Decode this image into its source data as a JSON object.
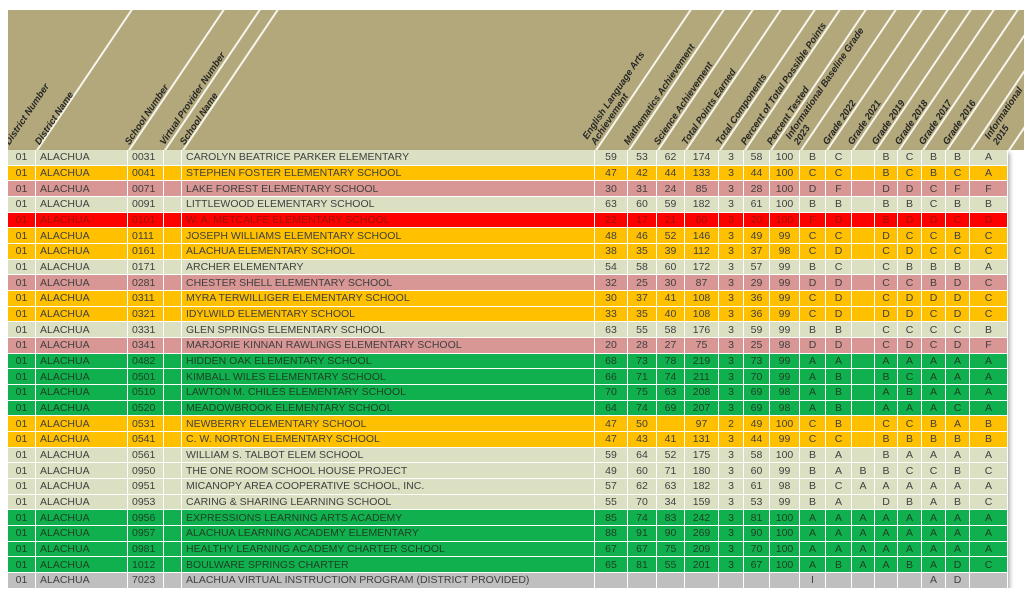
{
  "colors": {
    "header_bg": "#b2a87b",
    "divider": "#f7f5ec",
    "row_pale": "#dbe0c2",
    "row_gold": "#ffc000",
    "row_pink": "#d89694",
    "row_red": "#ff0000",
    "row_green": "#10b04e",
    "row_gray": "#bfbfbf",
    "text_default": "#404040",
    "text_red_row": "#9d1309",
    "text_green_row": "#1d4023"
  },
  "table": {
    "columns": [
      {
        "key": "district-number",
        "label": "District Number"
      },
      {
        "key": "district-name",
        "label": "District Name"
      },
      {
        "key": "school-number",
        "label": "School Number"
      },
      {
        "key": "virtual-provider-number",
        "label": "Virtual Provider Number"
      },
      {
        "key": "school-name",
        "label": "School Name"
      },
      {
        "key": "ela-achievement",
        "label": "English Language Arts\nAchievement"
      },
      {
        "key": "mathematics-achievement",
        "label": "Mathematics Achievement"
      },
      {
        "key": "science-achievement",
        "label": "Science Achievement"
      },
      {
        "key": "total-points-earned",
        "label": "Total Points Earned"
      },
      {
        "key": "total-components",
        "label": "Total Components"
      },
      {
        "key": "percent-of-total-possible-points",
        "label": "Percent of Total Possible Points"
      },
      {
        "key": "percent-tested",
        "label": "Percent Tested"
      },
      {
        "key": "informational-baseline-grade-2023",
        "label": "Informational Baseline Grade\n2023"
      },
      {
        "key": "grade-2022",
        "label": "Grade 2022"
      },
      {
        "key": "grade-2021",
        "label": "Grade 2021"
      },
      {
        "key": "grade-2019",
        "label": "Grade 2019"
      },
      {
        "key": "grade-2018",
        "label": "Grade 2018"
      },
      {
        "key": "grade-2017",
        "label": "Grade 2017"
      },
      {
        "key": "grade-2016",
        "label": "Grade 2016"
      },
      {
        "key": "informational-2015",
        "label": "Informational\n2015"
      }
    ],
    "rows": [
      {
        "color": "pale",
        "cells": [
          "01",
          "ALACHUA",
          "0031",
          "",
          "CAROLYN BEATRICE PARKER ELEMENTARY",
          "59",
          "53",
          "62",
          "174",
          "3",
          "58",
          "100",
          "B",
          "C",
          "",
          "B",
          "C",
          "B",
          "B",
          "A"
        ]
      },
      {
        "color": "gold",
        "cells": [
          "01",
          "ALACHUA",
          "0041",
          "",
          "STEPHEN FOSTER ELEMENTARY SCHOOL",
          "47",
          "42",
          "44",
          "133",
          "3",
          "44",
          "100",
          "C",
          "C",
          "",
          "B",
          "C",
          "B",
          "C",
          "A"
        ]
      },
      {
        "color": "pink",
        "cells": [
          "01",
          "ALACHUA",
          "0071",
          "",
          "LAKE FOREST ELEMENTARY SCHOOL",
          "30",
          "31",
          "24",
          "85",
          "3",
          "28",
          "100",
          "D",
          "F",
          "",
          "D",
          "D",
          "C",
          "F",
          "F"
        ]
      },
      {
        "color": "pale",
        "cells": [
          "01",
          "ALACHUA",
          "0091",
          "",
          "LITTLEWOOD ELEMENTARY SCHOOL",
          "63",
          "60",
          "59",
          "182",
          "3",
          "61",
          "100",
          "B",
          "B",
          "",
          "B",
          "B",
          "C",
          "B",
          "B"
        ]
      },
      {
        "color": "red",
        "cells": [
          "01",
          "ALACHUA",
          "0101",
          "",
          "W. A. METCALFE ELEMENTARY SCHOOL",
          "22",
          "17",
          "21",
          "60",
          "3",
          "20",
          "100",
          "F",
          "D",
          "",
          "B",
          "D",
          "D",
          "C",
          "D"
        ]
      },
      {
        "color": "gold",
        "cells": [
          "01",
          "ALACHUA",
          "0111",
          "",
          "JOSEPH WILLIAMS ELEMENTARY SCHOOL",
          "48",
          "46",
          "52",
          "146",
          "3",
          "49",
          "99",
          "C",
          "C",
          "",
          "D",
          "C",
          "C",
          "B",
          "C"
        ]
      },
      {
        "color": "gold",
        "cells": [
          "01",
          "ALACHUA",
          "0161",
          "",
          "ALACHUA ELEMENTARY SCHOOL",
          "38",
          "35",
          "39",
          "112",
          "3",
          "37",
          "98",
          "C",
          "D",
          "",
          "C",
          "D",
          "C",
          "C",
          "C"
        ]
      },
      {
        "color": "pale",
        "cells": [
          "01",
          "ALACHUA",
          "0171",
          "",
          "ARCHER ELEMENTARY",
          "54",
          "58",
          "60",
          "172",
          "3",
          "57",
          "99",
          "B",
          "C",
          "",
          "C",
          "B",
          "B",
          "B",
          "A"
        ]
      },
      {
        "color": "pink",
        "cells": [
          "01",
          "ALACHUA",
          "0281",
          "",
          "CHESTER SHELL ELEMENTARY SCHOOL",
          "32",
          "25",
          "30",
          "87",
          "3",
          "29",
          "99",
          "D",
          "D",
          "",
          "C",
          "C",
          "B",
          "D",
          "C"
        ]
      },
      {
        "color": "gold",
        "cells": [
          "01",
          "ALACHUA",
          "0311",
          "",
          "MYRA TERWILLIGER ELEMENTARY SCHOOL",
          "30",
          "37",
          "41",
          "108",
          "3",
          "36",
          "99",
          "C",
          "D",
          "",
          "C",
          "D",
          "D",
          "D",
          "C"
        ]
      },
      {
        "color": "gold",
        "cells": [
          "01",
          "ALACHUA",
          "0321",
          "",
          "IDYLWILD ELEMENTARY SCHOOL",
          "33",
          "35",
          "40",
          "108",
          "3",
          "36",
          "99",
          "C",
          "D",
          "",
          "D",
          "D",
          "C",
          "D",
          "C"
        ]
      },
      {
        "color": "pale",
        "cells": [
          "01",
          "ALACHUA",
          "0331",
          "",
          "GLEN SPRINGS ELEMENTARY SCHOOL",
          "63",
          "55",
          "58",
          "176",
          "3",
          "59",
          "99",
          "B",
          "B",
          "",
          "C",
          "C",
          "C",
          "C",
          "B"
        ]
      },
      {
        "color": "pink",
        "cells": [
          "01",
          "ALACHUA",
          "0341",
          "",
          "MARJORIE KINNAN RAWLINGS ELEMENTARY SCHOOL",
          "20",
          "28",
          "27",
          "75",
          "3",
          "25",
          "98",
          "D",
          "D",
          "",
          "C",
          "D",
          "C",
          "D",
          "F"
        ]
      },
      {
        "color": "green",
        "cells": [
          "01",
          "ALACHUA",
          "0482",
          "",
          "HIDDEN OAK ELEMENTARY SCHOOL",
          "68",
          "73",
          "78",
          "219",
          "3",
          "73",
          "99",
          "A",
          "A",
          "",
          "A",
          "A",
          "A",
          "A",
          "A"
        ]
      },
      {
        "color": "green",
        "cells": [
          "01",
          "ALACHUA",
          "0501",
          "",
          "KIMBALL WILES ELEMENTARY SCHOOL",
          "66",
          "71",
          "74",
          "211",
          "3",
          "70",
          "99",
          "A",
          "B",
          "",
          "B",
          "C",
          "A",
          "A",
          "A"
        ]
      },
      {
        "color": "green",
        "cells": [
          "01",
          "ALACHUA",
          "0510",
          "",
          "LAWTON M. CHILES ELEMENTARY SCHOOL",
          "70",
          "75",
          "63",
          "208",
          "3",
          "69",
          "98",
          "A",
          "B",
          "",
          "A",
          "B",
          "A",
          "A",
          "A"
        ]
      },
      {
        "color": "green",
        "cells": [
          "01",
          "ALACHUA",
          "0520",
          "",
          "MEADOWBROOK ELEMENTARY SCHOOL",
          "64",
          "74",
          "69",
          "207",
          "3",
          "69",
          "98",
          "A",
          "B",
          "",
          "A",
          "A",
          "A",
          "C",
          "A"
        ]
      },
      {
        "color": "gold",
        "cells": [
          "01",
          "ALACHUA",
          "0531",
          "",
          "NEWBERRY ELEMENTARY SCHOOL",
          "47",
          "50",
          "",
          "97",
          "2",
          "49",
          "100",
          "C",
          "B",
          "",
          "C",
          "C",
          "B",
          "A",
          "B"
        ]
      },
      {
        "color": "gold",
        "cells": [
          "01",
          "ALACHUA",
          "0541",
          "",
          "C. W. NORTON ELEMENTARY SCHOOL",
          "47",
          "43",
          "41",
          "131",
          "3",
          "44",
          "99",
          "C",
          "C",
          "",
          "B",
          "B",
          "B",
          "B",
          "B"
        ]
      },
      {
        "color": "pale",
        "cells": [
          "01",
          "ALACHUA",
          "0561",
          "",
          "WILLIAM S. TALBOT ELEM SCHOOL",
          "59",
          "64",
          "52",
          "175",
          "3",
          "58",
          "100",
          "B",
          "A",
          "",
          "B",
          "A",
          "A",
          "A",
          "A"
        ]
      },
      {
        "color": "pale",
        "cells": [
          "01",
          "ALACHUA",
          "0950",
          "",
          "THE ONE ROOM SCHOOL HOUSE PROJECT",
          "49",
          "60",
          "71",
          "180",
          "3",
          "60",
          "99",
          "B",
          "A",
          "B",
          "B",
          "C",
          "C",
          "B",
          "C"
        ]
      },
      {
        "color": "pale",
        "cells": [
          "01",
          "ALACHUA",
          "0951",
          "",
          "MICANOPY AREA COOPERATIVE SCHOOL, INC.",
          "57",
          "62",
          "63",
          "182",
          "3",
          "61",
          "98",
          "B",
          "C",
          "A",
          "A",
          "A",
          "A",
          "A",
          "A"
        ]
      },
      {
        "color": "pale",
        "cells": [
          "01",
          "ALACHUA",
          "0953",
          "",
          "CARING & SHARING LEARNING SCHOOL",
          "55",
          "70",
          "34",
          "159",
          "3",
          "53",
          "99",
          "B",
          "A",
          "",
          "D",
          "B",
          "A",
          "B",
          "C"
        ]
      },
      {
        "color": "green",
        "cells": [
          "01",
          "ALACHUA",
          "0956",
          "",
          "EXPRESSIONS LEARNING ARTS ACADEMY",
          "85",
          "74",
          "83",
          "242",
          "3",
          "81",
          "100",
          "A",
          "A",
          "A",
          "A",
          "A",
          "A",
          "A",
          "A"
        ]
      },
      {
        "color": "green",
        "cells": [
          "01",
          "ALACHUA",
          "0957",
          "",
          "ALACHUA LEARNING ACADEMY ELEMENTARY",
          "88",
          "91",
          "90",
          "269",
          "3",
          "90",
          "100",
          "A",
          "A",
          "A",
          "A",
          "A",
          "A",
          "A",
          "A"
        ]
      },
      {
        "color": "green",
        "cells": [
          "01",
          "ALACHUA",
          "0981",
          "",
          "HEALTHY LEARNING ACADEMY CHARTER SCHOOL",
          "67",
          "67",
          "75",
          "209",
          "3",
          "70",
          "100",
          "A",
          "A",
          "A",
          "A",
          "A",
          "A",
          "A",
          "A"
        ]
      },
      {
        "color": "green",
        "cells": [
          "01",
          "ALACHUA",
          "1012",
          "",
          "BOULWARE SPRINGS CHARTER",
          "65",
          "81",
          "55",
          "201",
          "3",
          "67",
          "100",
          "A",
          "B",
          "A",
          "A",
          "B",
          "A",
          "D",
          "C"
        ]
      },
      {
        "color": "gray",
        "cells": [
          "01",
          "ALACHUA",
          "7023",
          "",
          "ALACHUA VIRTUAL INSTRUCTION PROGRAM (DISTRICT PROVIDED)",
          "",
          "",
          "",
          "",
          "",
          "",
          "",
          "I",
          "",
          "",
          "",
          "",
          "A",
          "D",
          ""
        ]
      }
    ]
  }
}
